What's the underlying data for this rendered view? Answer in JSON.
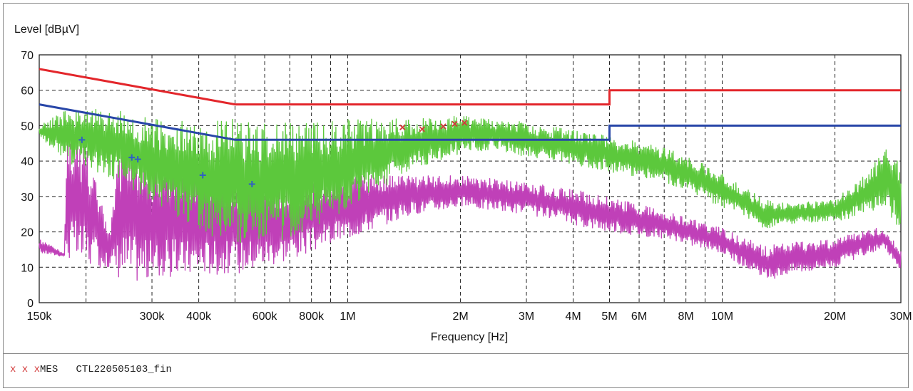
{
  "chart_data": {
    "type": "line",
    "ylabel": "Level [dBµV]",
    "xlabel": "Frequency [Hz]",
    "x_scale": "log",
    "xlim": [
      150000,
      30000000
    ],
    "ylim": [
      0,
      70
    ],
    "grid": true,
    "y_ticks": [
      0,
      10,
      20,
      30,
      40,
      50,
      60,
      70
    ],
    "x_ticks": [
      {
        "value": 150000,
        "label": "150k"
      },
      {
        "value": 300000,
        "label": "300k"
      },
      {
        "value": 400000,
        "label": "400k"
      },
      {
        "value": 600000,
        "label": "600k"
      },
      {
        "value": 800000,
        "label": "800k"
      },
      {
        "value": 1000000,
        "label": "1M"
      },
      {
        "value": 2000000,
        "label": "2M"
      },
      {
        "value": 3000000,
        "label": "3M"
      },
      {
        "value": 4000000,
        "label": "4M"
      },
      {
        "value": 5000000,
        "label": "5M"
      },
      {
        "value": 6000000,
        "label": "6M"
      },
      {
        "value": 8000000,
        "label": "8M"
      },
      {
        "value": 10000000,
        "label": "10M"
      },
      {
        "value": 20000000,
        "label": "20M"
      },
      {
        "value": 30000000,
        "label": "30M"
      }
    ],
    "x_grid": [
      200000,
      300000,
      400000,
      500000,
      600000,
      700000,
      800000,
      900000,
      1000000,
      2000000,
      3000000,
      4000000,
      5000000,
      6000000,
      7000000,
      8000000,
      9000000,
      10000000,
      20000000,
      30000000
    ],
    "colors": {
      "qp_limit": "#e3262b",
      "av_limit": "#2846a8",
      "qp_trace": "#5cc83c",
      "av_trace": "#c040b8",
      "qp_marker": "#d23a3a",
      "av_marker": "#2f5fc4"
    },
    "qp_limit": {
      "points": [
        [
          150000,
          66
        ],
        [
          500000,
          56
        ],
        [
          5000000,
          56
        ],
        [
          5000000,
          60
        ],
        [
          30000000,
          60
        ]
      ]
    },
    "av_limit": {
      "points": [
        [
          150000,
          56
        ],
        [
          500000,
          46
        ],
        [
          5000000,
          46
        ],
        [
          5000000,
          50
        ],
        [
          30000000,
          50
        ]
      ]
    },
    "qp_trace": {
      "envelope_max": [
        [
          150000,
          50
        ],
        [
          180000,
          55
        ],
        [
          200000,
          56
        ],
        [
          250000,
          54
        ],
        [
          300000,
          52
        ],
        [
          400000,
          51
        ],
        [
          500000,
          52
        ],
        [
          700000,
          51
        ],
        [
          1000000,
          52
        ],
        [
          1500000,
          52
        ],
        [
          2000000,
          53
        ],
        [
          2500000,
          52
        ],
        [
          3000000,
          51
        ],
        [
          4000000,
          49
        ],
        [
          5000000,
          47
        ],
        [
          7000000,
          44
        ],
        [
          10000000,
          37
        ],
        [
          13000000,
          29
        ],
        [
          15000000,
          28
        ],
        [
          20000000,
          29
        ],
        [
          25000000,
          38
        ],
        [
          27000000,
          45
        ],
        [
          30000000,
          40
        ]
      ],
      "envelope_min": [
        [
          150000,
          47
        ],
        [
          180000,
          39
        ],
        [
          200000,
          38
        ],
        [
          250000,
          34
        ],
        [
          300000,
          28
        ],
        [
          400000,
          20
        ],
        [
          500000,
          16
        ],
        [
          700000,
          18
        ],
        [
          1000000,
          26
        ],
        [
          1500000,
          38
        ],
        [
          2000000,
          42
        ],
        [
          2500000,
          43
        ],
        [
          3000000,
          41
        ],
        [
          4000000,
          39
        ],
        [
          5000000,
          37
        ],
        [
          7000000,
          34
        ],
        [
          10000000,
          27
        ],
        [
          13000000,
          21
        ],
        [
          15000000,
          22
        ],
        [
          20000000,
          23
        ],
        [
          25000000,
          25
        ],
        [
          27000000,
          27
        ],
        [
          30000000,
          20
        ]
      ]
    },
    "av_trace": {
      "envelope_max": [
        [
          150000,
          18
        ],
        [
          175000,
          14
        ],
        [
          178000,
          48
        ],
        [
          200000,
          45
        ],
        [
          230000,
          20
        ],
        [
          250000,
          48
        ],
        [
          300000,
          40
        ],
        [
          400000,
          38
        ],
        [
          500000,
          36
        ],
        [
          700000,
          34
        ],
        [
          1000000,
          36
        ],
        [
          1500000,
          36
        ],
        [
          2000000,
          36
        ],
        [
          3000000,
          34
        ],
        [
          4000000,
          32
        ],
        [
          5000000,
          30
        ],
        [
          7000000,
          26
        ],
        [
          10000000,
          21
        ],
        [
          13000000,
          16
        ],
        [
          15000000,
          17
        ],
        [
          20000000,
          18
        ],
        [
          25000000,
          21
        ],
        [
          27000000,
          21
        ],
        [
          30000000,
          15
        ]
      ],
      "envelope_min": [
        [
          150000,
          14
        ],
        [
          175000,
          13
        ],
        [
          178000,
          12
        ],
        [
          200000,
          10
        ],
        [
          230000,
          10
        ],
        [
          250000,
          6
        ],
        [
          300000,
          6
        ],
        [
          400000,
          8
        ],
        [
          500000,
          8
        ],
        [
          700000,
          12
        ],
        [
          1000000,
          18
        ],
        [
          1500000,
          25
        ],
        [
          2000000,
          27
        ],
        [
          3000000,
          25
        ],
        [
          4000000,
          22
        ],
        [
          5000000,
          20
        ],
        [
          7000000,
          18
        ],
        [
          10000000,
          14
        ],
        [
          13000000,
          6
        ],
        [
          15000000,
          8
        ],
        [
          20000000,
          10
        ],
        [
          25000000,
          14
        ],
        [
          27000000,
          16
        ],
        [
          30000000,
          8
        ]
      ]
    },
    "qp_final_markers": [
      [
        1400000,
        49.5
      ],
      [
        1580000,
        49
      ],
      [
        1800000,
        49.8
      ],
      [
        1930000,
        50.5
      ],
      [
        2050000,
        50.8
      ]
    ],
    "av_final_markers": [
      [
        195000,
        46
      ],
      [
        265000,
        41
      ],
      [
        275000,
        40.5
      ],
      [
        410000,
        36
      ],
      [
        555000,
        33.5
      ]
    ]
  },
  "legend": {
    "marker_symbols": "x x x",
    "label": "MES",
    "filename": "CTL220505103_fin"
  }
}
